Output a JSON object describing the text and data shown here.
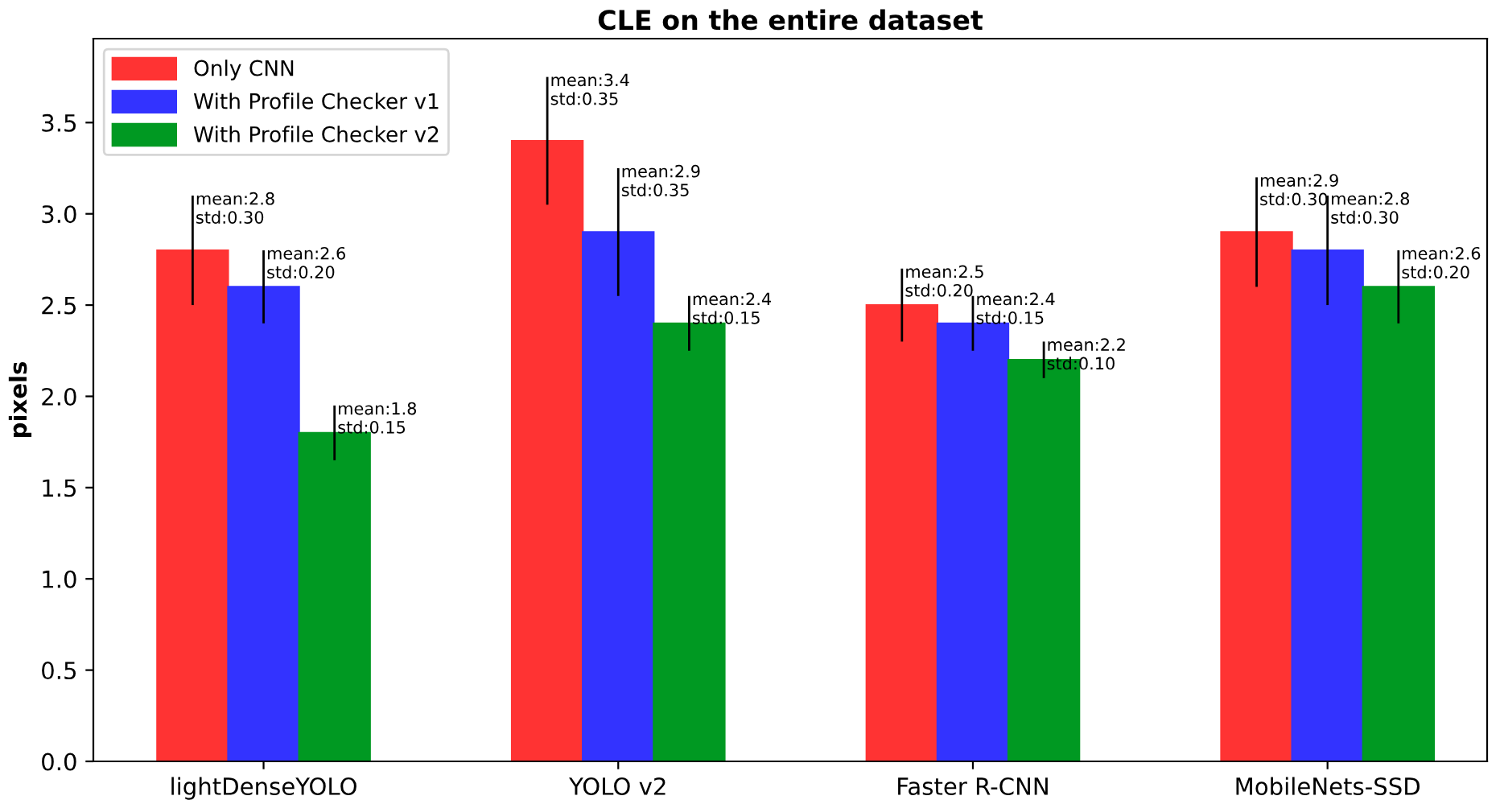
{
  "chart_data": {
    "type": "bar",
    "title": "CLE on the entire dataset",
    "ylabel": "pixels",
    "categories": [
      "lightDenseYOLO",
      "YOLO v2",
      "Faster R-CNN",
      "MobileNets-SSD"
    ],
    "series": [
      {
        "name": "Only CNN",
        "color": "#ff3333",
        "values": [
          2.8,
          3.4,
          2.5,
          2.9
        ],
        "errors": [
          0.3,
          0.35,
          0.2,
          0.3
        ],
        "value_labels": [
          "mean:2.8\nstd:0.30",
          "mean:3.4\nstd:0.35",
          "mean:2.5\nstd:0.20",
          "mean:2.9\nstd:0.30"
        ]
      },
      {
        "name": "With Profile Checker v1",
        "color": "#3333ff",
        "values": [
          2.6,
          2.9,
          2.4,
          2.8
        ],
        "errors": [
          0.2,
          0.35,
          0.15,
          0.3
        ],
        "value_labels": [
          "mean:2.6\nstd:0.20",
          "mean:2.9\nstd:0.35",
          "mean:2.4\nstd:0.15",
          "mean:2.8\nstd:0.30"
        ]
      },
      {
        "name": "With Profile Checker v2",
        "color": "#009922",
        "values": [
          1.8,
          2.4,
          2.2,
          2.6
        ],
        "errors": [
          0.15,
          0.15,
          0.1,
          0.2
        ],
        "value_labels": [
          "mean:1.8\nstd:0.15",
          "mean:2.4\nstd:0.15",
          "mean:2.2\nstd:0.10",
          "mean:2.6\nstd:0.20"
        ]
      }
    ],
    "ylim": [
      0,
      3.96
    ],
    "yticks": [
      {
        "value": 0,
        "label": "0.0"
      },
      {
        "value": 0.5,
        "label": "0.5"
      },
      {
        "value": 1,
        "label": "1.0"
      },
      {
        "value": 1.5,
        "label": "1.5"
      },
      {
        "value": 2,
        "label": "2.0"
      },
      {
        "value": 2.5,
        "label": "2.5"
      },
      {
        "value": 3,
        "label": "3.0"
      },
      {
        "value": 3.5,
        "label": "3.5"
      }
    ],
    "legend": "top left",
    "grid": false
  }
}
